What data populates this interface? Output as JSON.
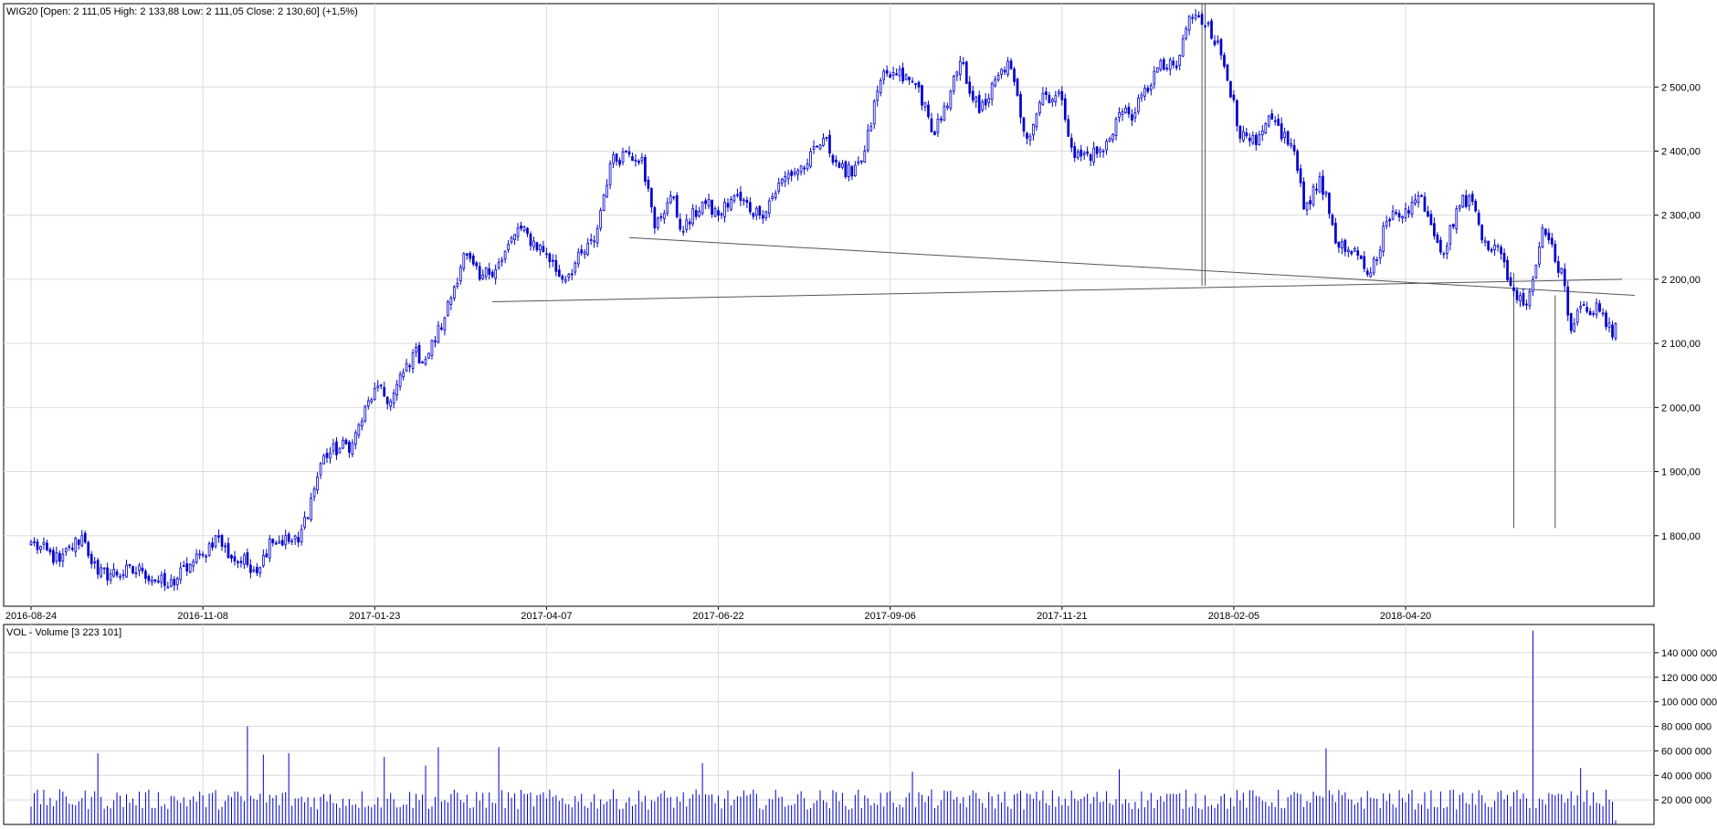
{
  "chart_data": [
    {
      "type": "candlestick",
      "series_name": "WIG20",
      "header": {
        "label": "WIG20",
        "open": "2 111,05",
        "high": "2 133,88",
        "low": "2 111,05",
        "close": "2 130,60",
        "change": "(+1,5%)"
      },
      "header_text": "WIG20 [Open: 2 111,05  High: 2 133,88  Low: 2 111,05  Close: 2 130,60] (+1,5%)",
      "x_tick_labels": [
        "2016-08-24",
        "2016-11-08",
        "2017-01-23",
        "2017-04-07",
        "2017-06-22",
        "2017-09-06",
        "2017-11-21",
        "2018-02-05",
        "2018-04-20"
      ],
      "y_ticks": [
        1800,
        1900,
        2000,
        2100,
        2200,
        2300,
        2400,
        2500
      ],
      "y_tick_labels": [
        "1 800,00",
        "1 900,00",
        "2 000,00",
        "2 100,00",
        "2 200,00",
        "2 300,00",
        "2 400,00",
        "2 500,00"
      ],
      "ylim": [
        1690,
        2630
      ],
      "grid": true,
      "close_anchors": [
        {
          "date": "2016-08-24",
          "value": 1790
        },
        {
          "date": "2016-09-06",
          "value": 1760
        },
        {
          "date": "2016-09-15",
          "value": 1800
        },
        {
          "date": "2016-09-22",
          "value": 1740
        },
        {
          "date": "2016-10-12",
          "value": 1745
        },
        {
          "date": "2016-10-24",
          "value": 1720
        },
        {
          "date": "2016-11-02",
          "value": 1755
        },
        {
          "date": "2016-11-08",
          "value": 1770
        },
        {
          "date": "2016-11-14",
          "value": 1800
        },
        {
          "date": "2016-11-21",
          "value": 1765
        },
        {
          "date": "2016-12-02",
          "value": 1750
        },
        {
          "date": "2016-12-07",
          "value": 1795
        },
        {
          "date": "2016-12-20",
          "value": 1790
        },
        {
          "date": "2016-12-30",
          "value": 1925
        },
        {
          "date": "2017-01-12",
          "value": 1945
        },
        {
          "date": "2017-01-23",
          "value": 2030
        },
        {
          "date": "2017-01-30",
          "value": 2010
        },
        {
          "date": "2017-02-08",
          "value": 2085
        },
        {
          "date": "2017-02-14",
          "value": 2075
        },
        {
          "date": "2017-02-22",
          "value": 2140
        },
        {
          "date": "2017-03-02",
          "value": 2240
        },
        {
          "date": "2017-03-09",
          "value": 2200
        },
        {
          "date": "2017-03-20",
          "value": 2230
        },
        {
          "date": "2017-03-27",
          "value": 2280
        },
        {
          "date": "2017-04-07",
          "value": 2240
        },
        {
          "date": "2017-04-14",
          "value": 2200
        },
        {
          "date": "2017-04-28",
          "value": 2260
        },
        {
          "date": "2017-05-05",
          "value": 2380
        },
        {
          "date": "2017-05-12",
          "value": 2400
        },
        {
          "date": "2017-05-19",
          "value": 2390
        },
        {
          "date": "2017-05-25",
          "value": 2280
        },
        {
          "date": "2017-06-01",
          "value": 2330
        },
        {
          "date": "2017-06-07",
          "value": 2275
        },
        {
          "date": "2017-06-15",
          "value": 2320
        },
        {
          "date": "2017-06-22",
          "value": 2300
        },
        {
          "date": "2017-06-29",
          "value": 2330
        },
        {
          "date": "2017-07-11",
          "value": 2300
        },
        {
          "date": "2017-07-21",
          "value": 2360
        },
        {
          "date": "2017-08-01",
          "value": 2380
        },
        {
          "date": "2017-08-08",
          "value": 2420
        },
        {
          "date": "2017-08-17",
          "value": 2360
        },
        {
          "date": "2017-08-25",
          "value": 2400
        },
        {
          "date": "2017-09-01",
          "value": 2510
        },
        {
          "date": "2017-09-08",
          "value": 2520
        },
        {
          "date": "2017-09-19",
          "value": 2500
        },
        {
          "date": "2017-09-25",
          "value": 2430
        },
        {
          "date": "2017-10-02",
          "value": 2470
        },
        {
          "date": "2017-10-06",
          "value": 2540
        },
        {
          "date": "2017-10-16",
          "value": 2460
        },
        {
          "date": "2017-10-27",
          "value": 2540
        },
        {
          "date": "2017-11-06",
          "value": 2420
        },
        {
          "date": "2017-11-13",
          "value": 2490
        },
        {
          "date": "2017-11-21",
          "value": 2480
        },
        {
          "date": "2017-11-27",
          "value": 2390
        },
        {
          "date": "2017-12-08",
          "value": 2400
        },
        {
          "date": "2017-12-15",
          "value": 2460
        },
        {
          "date": "2017-12-22",
          "value": 2460
        },
        {
          "date": "2018-01-02",
          "value": 2530
        },
        {
          "date": "2018-01-10",
          "value": 2530
        },
        {
          "date": "2018-01-16",
          "value": 2610
        },
        {
          "date": "2018-01-24",
          "value": 2600
        },
        {
          "date": "2018-01-30",
          "value": 2550
        },
        {
          "date": "2018-02-05",
          "value": 2480
        },
        {
          "date": "2018-02-07",
          "value": 2420
        },
        {
          "date": "2018-02-14",
          "value": 2410
        },
        {
          "date": "2018-02-21",
          "value": 2450
        },
        {
          "date": "2018-03-02",
          "value": 2400
        },
        {
          "date": "2018-03-07",
          "value": 2310
        },
        {
          "date": "2018-03-14",
          "value": 2360
        },
        {
          "date": "2018-03-22",
          "value": 2250
        },
        {
          "date": "2018-03-28",
          "value": 2240
        },
        {
          "date": "2018-04-05",
          "value": 2210
        },
        {
          "date": "2018-04-12",
          "value": 2290
        },
        {
          "date": "2018-04-20",
          "value": 2310
        },
        {
          "date": "2018-04-27",
          "value": 2330
        },
        {
          "date": "2018-05-08",
          "value": 2240
        },
        {
          "date": "2018-05-14",
          "value": 2310
        },
        {
          "date": "2018-05-18",
          "value": 2330
        },
        {
          "date": "2018-05-25",
          "value": 2260
        },
        {
          "date": "2018-06-01",
          "value": 2240
        },
        {
          "date": "2018-06-06",
          "value": 2190
        },
        {
          "date": "2018-06-12",
          "value": 2160
        },
        {
          "date": "2018-06-15",
          "value": 2200
        },
        {
          "date": "2018-06-20",
          "value": 2280
        },
        {
          "date": "2018-06-25",
          "value": 2255
        },
        {
          "date": "2018-06-29",
          "value": 2190
        },
        {
          "date": "2018-07-03",
          "value": 2120
        },
        {
          "date": "2018-07-09",
          "value": 2160
        },
        {
          "date": "2018-07-16",
          "value": 2150
        },
        {
          "date": "2018-07-20",
          "value": 2110
        },
        {
          "date": "2018-07-23",
          "value": 2131
        }
      ],
      "trend_lines": [
        {
          "x1": "2017-03-15",
          "y1": 2165,
          "x2": "2018-07-26",
          "y2": 2200
        },
        {
          "x1": "2017-05-15",
          "y1": 2265,
          "x2": "2018-07-31",
          "y2": 2175
        }
      ],
      "vertical_lines": [
        {
          "x": "2018-01-22",
          "y1": 2190,
          "y2": 2630
        },
        {
          "x": "2018-01-23",
          "y1": 2190,
          "y2": 2630
        },
        {
          "x": "2018-06-07",
          "y1": 1812,
          "y2": 2210
        },
        {
          "x": "2018-06-26",
          "y1": 1812,
          "y2": 2175
        }
      ]
    },
    {
      "type": "bar",
      "series_name": "Volume",
      "header_text": "VOL - Volume [3 223 101]",
      "y_ticks": [
        20000000,
        40000000,
        60000000,
        80000000,
        100000000,
        120000000,
        140000000
      ],
      "y_tick_labels": [
        "20 000 000",
        "40 000 000",
        "60 000 000",
        "80 000 000",
        "100 000 000",
        "120 000 000",
        "140 000 000"
      ],
      "ylim": [
        0,
        163000000
      ],
      "grid": true,
      "typical_volume": 22000000,
      "volume_spikes": [
        {
          "date": "2016-09-22",
          "value": 58000000
        },
        {
          "date": "2016-11-28",
          "value": 80000000
        },
        {
          "date": "2016-12-05",
          "value": 57000000
        },
        {
          "date": "2016-12-15",
          "value": 58000000
        },
        {
          "date": "2017-01-26",
          "value": 55000000
        },
        {
          "date": "2017-02-14",
          "value": 48000000
        },
        {
          "date": "2017-02-20",
          "value": 63000000
        },
        {
          "date": "2017-03-17",
          "value": 63000000
        },
        {
          "date": "2017-06-15",
          "value": 50000000
        },
        {
          "date": "2017-09-15",
          "value": 43000000
        },
        {
          "date": "2017-12-15",
          "value": 45000000
        },
        {
          "date": "2018-03-16",
          "value": 62000000
        },
        {
          "date": "2018-06-15",
          "value": 158000000
        },
        {
          "date": "2018-07-06",
          "value": 46000000
        },
        {
          "date": "2018-07-23",
          "value": 3223101
        }
      ]
    }
  ]
}
